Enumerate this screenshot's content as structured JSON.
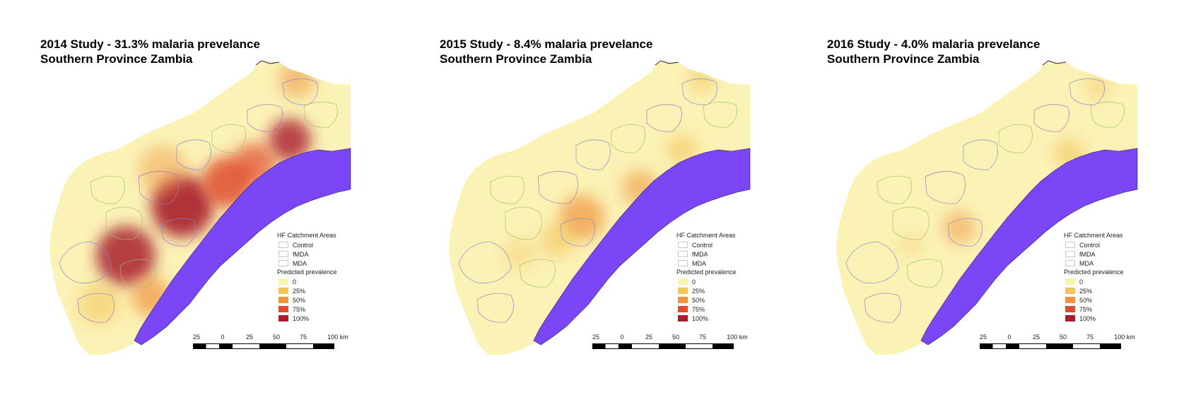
{
  "panels": [
    {
      "title_line1": "2014 Study - 31.3% malaria prevelance",
      "title_line2": "Southern Province Zambia",
      "level": "high"
    },
    {
      "title_line1": "2015 Study - 8.4% malaria prevelance",
      "title_line2": "Southern Province Zambia",
      "level": "medium"
    },
    {
      "title_line1": "2016 Study - 4.0% malaria prevelance",
      "title_line2": "Southern Province Zambia",
      "level": "low"
    }
  ],
  "legend": {
    "catchment_title": "HF Catchment Areas",
    "catchment_items": [
      {
        "label": "Control",
        "color": "#f2f2f2"
      },
      {
        "label": "fMDA",
        "color": "#f2f2f2"
      },
      {
        "label": "MDA",
        "color": "#f2f2f2"
      }
    ],
    "prevalence_title": "Predicted prevalence",
    "prevalence_items": [
      {
        "label": "0",
        "color": "#fbf4ad"
      },
      {
        "label": "25%",
        "color": "#f4c45c"
      },
      {
        "label": "50%",
        "color": "#ef9440"
      },
      {
        "label": "75%",
        "color": "#df4c2f"
      },
      {
        "label": "100%",
        "color": "#a91d2e"
      }
    ]
  },
  "scalebar": {
    "ticks": [
      "25",
      "0",
      "25",
      "50",
      "75",
      "100 km"
    ]
  },
  "colors": {
    "lake": "#7b46f6",
    "base": "#fbf2b6",
    "catchment_green": "#99c46a",
    "catchment_blue": "#7f8dcf",
    "catchment_purple": "#9f78c2"
  }
}
